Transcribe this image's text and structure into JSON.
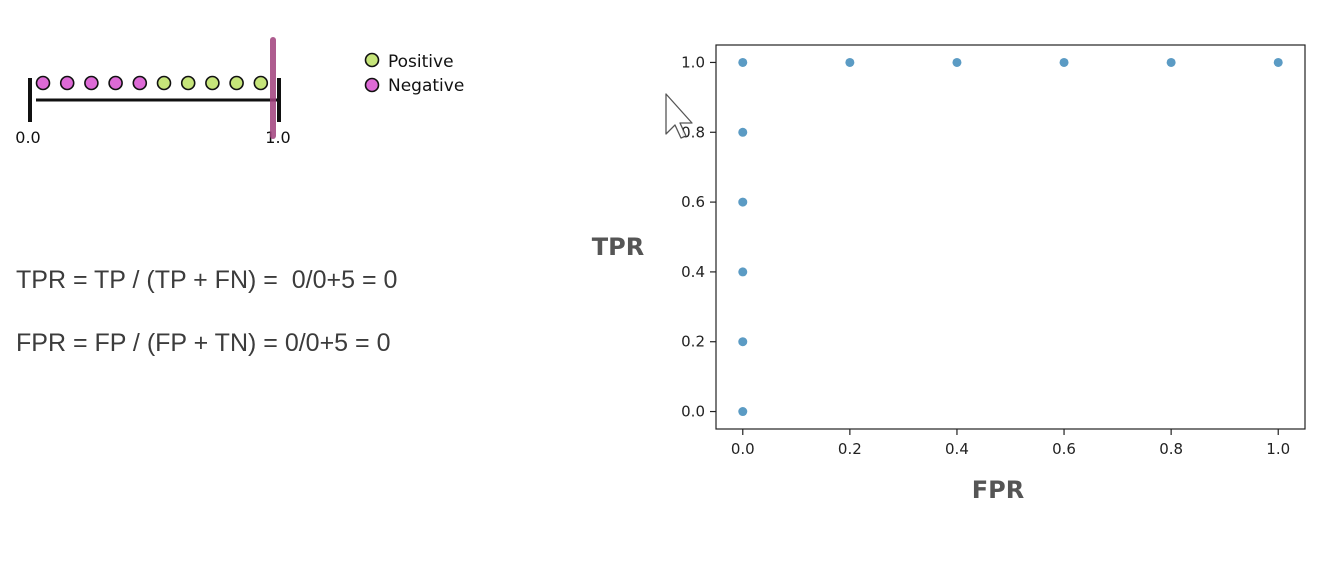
{
  "threshold_line": {
    "start_label": "0.0",
    "end_label": "1.0",
    "points": [
      "Negative",
      "Negative",
      "Negative",
      "Negative",
      "Negative",
      "Positive",
      "Positive",
      "Positive",
      "Positive",
      "Positive"
    ],
    "threshold": 1.0,
    "threshold_color": "#a0407c"
  },
  "legend": {
    "positive_label": "Positive",
    "negative_label": "Negative",
    "positive_color": "#c6e57a",
    "negative_color": "#dd6ad6"
  },
  "formulas": {
    "tpr": "TPR = TP / (TP + FN) =  0/0+5 = 0",
    "fpr": "FPR = FP / (FP + TN) = 0/0+5 = 0"
  },
  "chart_data": {
    "type": "scatter",
    "xlabel": "FPR",
    "ylabel": "TPR",
    "xlim": [
      -0.05,
      1.05
    ],
    "ylim": [
      -0.05,
      1.05
    ],
    "xticks": [
      "0.0",
      "0.2",
      "0.4",
      "0.6",
      "0.8",
      "1.0"
    ],
    "yticks": [
      "0.0",
      "0.2",
      "0.4",
      "0.6",
      "0.8",
      "1.0"
    ],
    "grid": false,
    "color": "#5b9bc4",
    "points": [
      {
        "x": 0.0,
        "y": 0.0
      },
      {
        "x": 0.0,
        "y": 0.2
      },
      {
        "x": 0.0,
        "y": 0.4
      },
      {
        "x": 0.0,
        "y": 0.6
      },
      {
        "x": 0.0,
        "y": 0.8
      },
      {
        "x": 0.0,
        "y": 1.0
      },
      {
        "x": 0.2,
        "y": 1.0
      },
      {
        "x": 0.4,
        "y": 1.0
      },
      {
        "x": 0.6,
        "y": 1.0
      },
      {
        "x": 0.8,
        "y": 1.0
      },
      {
        "x": 1.0,
        "y": 1.0
      }
    ]
  }
}
